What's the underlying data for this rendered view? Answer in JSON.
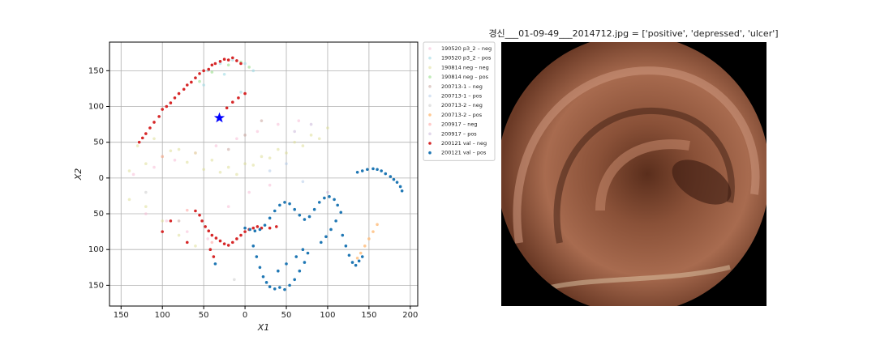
{
  "chart_data": {
    "type": "scatter",
    "xlabel": "X1",
    "ylabel": "X2",
    "grid": true,
    "xlim": [
      -164,
      209
    ],
    "ylim": [
      -179,
      190
    ],
    "xticks": [
      {
        "value": -150,
        "label": "150"
      },
      {
        "value": -100,
        "label": "100"
      },
      {
        "value": -50,
        "label": "50"
      },
      0,
      50,
      100,
      150,
      200
    ],
    "yticks": [
      {
        "value": -150,
        "label": "150"
      },
      {
        "value": -100,
        "label": "100"
      },
      {
        "value": -50,
        "label": "50"
      },
      0,
      50,
      100,
      150
    ],
    "legend": "outside-upper-right",
    "series": [
      {
        "name": "190520 p3_2 – neg",
        "color": "#f7b6d2",
        "alpha": 0.5,
        "x": [
          -135,
          -110,
          -85,
          -60,
          -35,
          -10,
          15,
          40,
          65,
          -120,
          -95,
          -70,
          -45,
          -20,
          5,
          30
        ],
        "y": [
          5,
          15,
          25,
          35,
          45,
          55,
          65,
          75,
          80,
          -50,
          -60,
          -75,
          -85,
          -40,
          -20,
          -10
        ]
      },
      {
        "name": "190520 p3_2 – pos",
        "color": "#9edae5",
        "alpha": 0.6,
        "x": [
          -60,
          -45,
          -30,
          -15,
          0,
          10,
          -50,
          -25,
          -5
        ],
        "y": [
          140,
          150,
          160,
          165,
          160,
          150,
          130,
          145,
          120
        ]
      },
      {
        "name": "190814 neg – neg",
        "color": "#dbdb8d",
        "alpha": 0.5,
        "x": [
          -140,
          -120,
          -100,
          -80,
          -60,
          -40,
          -20,
          0,
          20,
          40,
          60,
          80,
          100,
          -130,
          -110,
          -90,
          -70,
          -50,
          -30,
          -10,
          10,
          30,
          50,
          70,
          90,
          -140,
          -120,
          -100,
          -80,
          -60
        ],
        "y": [
          10,
          20,
          30,
          40,
          35,
          25,
          15,
          20,
          30,
          40,
          50,
          60,
          70,
          45,
          55,
          38,
          22,
          12,
          8,
          5,
          18,
          28,
          35,
          45,
          55,
          -30,
          -40,
          -60,
          -80,
          -95
        ]
      },
      {
        "name": "190814 neg – pos",
        "color": "#98df8a",
        "alpha": 0.6,
        "x": [
          -55,
          -40,
          -20,
          -5,
          5
        ],
        "y": [
          135,
          148,
          158,
          162,
          155
        ]
      },
      {
        "name": "200713-1 – neg",
        "color": "#c49c94",
        "alpha": 0.5,
        "x": [
          -20,
          0,
          20,
          -80
        ],
        "y": [
          40,
          60,
          80,
          -60
        ]
      },
      {
        "name": "200713-1 – pos",
        "color": "#aec7e8",
        "alpha": 0.5,
        "x": [
          30,
          50,
          70
        ],
        "y": [
          10,
          20,
          -5
        ]
      },
      {
        "name": "200713-2 – neg",
        "color": "#c7c7c7",
        "alpha": 0.5,
        "x": [
          -13,
          -120
        ],
        "y": [
          -142,
          -20
        ]
      },
      {
        "name": "200713-2 – pos",
        "color": "#ffbb78",
        "alpha": 0.8,
        "x": [
          136,
          140,
          145,
          150,
          155,
          160
        ],
        "y": [
          -112,
          -105,
          -95,
          -85,
          -75,
          -65
        ]
      },
      {
        "name": "200917 – neg",
        "color": "#ff9896",
        "alpha": 0.5,
        "x": [
          -100,
          -70,
          -40
        ],
        "y": [
          30,
          -45,
          -90
        ]
      },
      {
        "name": "200917 – pos",
        "color": "#c5b0d5",
        "alpha": 0.5,
        "x": [
          60,
          80,
          100
        ],
        "y": [
          65,
          75,
          -20
        ]
      },
      {
        "name": "200121 val – neg",
        "color": "#d62728",
        "alpha": 1,
        "x": [
          -128,
          -124,
          -120,
          -115,
          -110,
          -104,
          -100,
          -95,
          -90,
          -85,
          -80,
          -74,
          -70,
          -65,
          -60,
          -55,
          -50,
          -44,
          -40,
          -36,
          -30,
          -25,
          -20,
          -15,
          -10,
          -5,
          -22,
          -15,
          -8,
          0,
          -60,
          -55,
          -52,
          -48,
          -44,
          -40,
          -35,
          -30,
          -25,
          -20,
          -15,
          -10,
          -5,
          0,
          5,
          10,
          15,
          20,
          30,
          38,
          -42,
          -38,
          -70,
          -90,
          -100
        ],
        "y": [
          50,
          56,
          62,
          70,
          78,
          86,
          96,
          100,
          105,
          112,
          118,
          124,
          130,
          134,
          140,
          146,
          150,
          152,
          158,
          160,
          163,
          166,
          165,
          168,
          164,
          160,
          98,
          106,
          112,
          118,
          -46,
          -52,
          -60,
          -68,
          -74,
          -80,
          -84,
          -88,
          -92,
          -94,
          -90,
          -85,
          -80,
          -75,
          -72,
          -70,
          -68,
          -70,
          -70,
          -68,
          -100,
          -110,
          -90,
          -60,
          -75
        ]
      },
      {
        "name": "200121 val – pos",
        "color": "#1f77b4",
        "alpha": 1,
        "x": [
          136,
          142,
          148,
          155,
          160,
          165,
          170,
          176,
          180,
          184,
          188,
          190,
          0,
          6,
          12,
          18,
          24,
          30,
          36,
          42,
          48,
          54,
          60,
          66,
          72,
          78,
          84,
          90,
          96,
          102,
          108,
          112,
          116,
          110,
          104,
          98,
          92,
          10,
          14,
          18,
          22,
          26,
          30,
          36,
          42,
          48,
          54,
          60,
          66,
          72,
          76,
          70,
          62,
          50,
          40,
          118,
          122,
          126,
          130,
          134,
          138,
          142,
          -36
        ],
        "y": [
          8,
          10,
          12,
          13,
          12,
          10,
          6,
          2,
          -2,
          -6,
          -12,
          -18,
          -70,
          -72,
          -74,
          -72,
          -66,
          -56,
          -46,
          -38,
          -34,
          -36,
          -44,
          -52,
          -58,
          -54,
          -44,
          -34,
          -28,
          -26,
          -30,
          -38,
          -48,
          -60,
          -72,
          -82,
          -90,
          -95,
          -110,
          -125,
          -138,
          -146,
          -152,
          -155,
          -153,
          -156,
          -150,
          -142,
          -130,
          -118,
          -105,
          -100,
          -110,
          -120,
          -130,
          -80,
          -95,
          -108,
          -118,
          -122,
          -116,
          -110,
          -120
        ]
      }
    ],
    "highlight": {
      "x": -31,
      "y": 84,
      "color": "#0000ff"
    }
  },
  "image": {
    "title": "경신___01-09-49___2014712.jpg = ['positive', 'depressed', 'ulcer']"
  }
}
